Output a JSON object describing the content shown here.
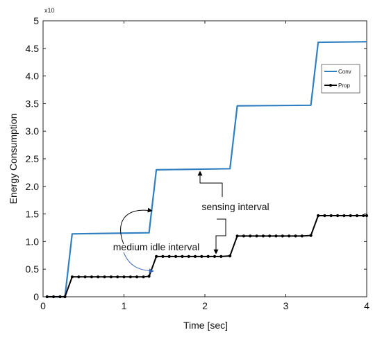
{
  "chart_data": {
    "type": "line",
    "xlabel": "Time [sec]",
    "ylabel": "Energy Consumption",
    "y_multiplier_label": "x10",
    "xlim": [
      0,
      4
    ],
    "ylim": [
      0,
      5
    ],
    "x_ticks": [
      "0",
      "1",
      "2",
      "3",
      "4"
    ],
    "y_ticks": [
      "0",
      "0.5",
      "1.0",
      "1.5",
      "2.0",
      "2.5",
      "3.0",
      "3.5",
      "4.0",
      "4.5",
      "5"
    ],
    "grid": false,
    "legend_position": "upper-right",
    "series": [
      {
        "name": "Conv",
        "color": "#2f7fc1",
        "x": [
          0.05,
          0.27,
          0.36,
          1.31,
          1.4,
          2.31,
          2.4,
          3.31,
          3.4,
          4.0
        ],
        "y": [
          0,
          0,
          1.14,
          1.16,
          2.3,
          2.32,
          3.46,
          3.47,
          4.61,
          4.62
        ]
      },
      {
        "name": "Prop",
        "color": "#000000",
        "x": [
          0.05,
          0.13,
          0.21,
          0.27,
          0.36,
          0.44,
          0.52,
          0.6,
          0.68,
          0.76,
          0.84,
          0.92,
          1.0,
          1.08,
          1.16,
          1.24,
          1.31,
          1.4,
          1.48,
          1.56,
          1.64,
          1.72,
          1.8,
          1.88,
          1.96,
          2.04,
          2.12,
          2.2,
          2.31,
          2.4,
          2.48,
          2.56,
          2.64,
          2.72,
          2.8,
          2.88,
          2.96,
          3.04,
          3.12,
          3.2,
          3.31,
          3.4,
          3.48,
          3.56,
          3.64,
          3.72,
          3.8,
          3.88,
          3.96,
          4.0
        ],
        "y": [
          0,
          0,
          0,
          0,
          0.36,
          0.36,
          0.36,
          0.36,
          0.36,
          0.36,
          0.36,
          0.36,
          0.36,
          0.36,
          0.36,
          0.36,
          0.37,
          0.73,
          0.73,
          0.73,
          0.73,
          0.73,
          0.73,
          0.73,
          0.73,
          0.73,
          0.73,
          0.73,
          0.74,
          1.1,
          1.1,
          1.1,
          1.1,
          1.1,
          1.1,
          1.1,
          1.1,
          1.1,
          1.1,
          1.1,
          1.11,
          1.47,
          1.47,
          1.47,
          1.47,
          1.47,
          1.47,
          1.47,
          1.47,
          1.47
        ]
      }
    ],
    "annotations": [
      {
        "text": "sensing interval",
        "x": 2.0,
        "y": 1.62
      },
      {
        "text": "medium idle interval",
        "x": 0.68,
        "y": 0.87
      }
    ]
  }
}
